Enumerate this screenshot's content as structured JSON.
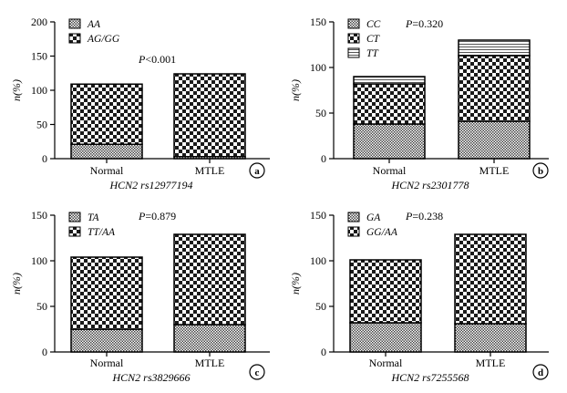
{
  "chart_data": [
    {
      "type": "bar",
      "stacked": true,
      "panel": "a",
      "categories": [
        "Normal",
        "MTLE"
      ],
      "series": [
        {
          "name": "AA",
          "values": [
            21,
            3
          ],
          "pattern": "dense"
        },
        {
          "name": "AG/GG",
          "values": [
            88,
            121
          ],
          "pattern": "check"
        }
      ],
      "xlabel": "HCN2 rs12977194",
      "ylabel": "n(%)",
      "ylim": [
        0,
        200
      ],
      "yticks": [
        0,
        50,
        100,
        150,
        200
      ],
      "p_prefix": "P",
      "p_value": "<0.001",
      "legend": "top-left"
    },
    {
      "type": "bar",
      "stacked": true,
      "panel": "b",
      "categories": [
        "Normal",
        "MTLE"
      ],
      "series": [
        {
          "name": "CC",
          "values": [
            38,
            41
          ],
          "pattern": "dense"
        },
        {
          "name": "CT",
          "values": [
            44,
            72
          ],
          "pattern": "check"
        },
        {
          "name": "TT",
          "values": [
            8,
            17
          ],
          "pattern": "hlines"
        }
      ],
      "xlabel": "HCN2 rs2301778",
      "ylabel": "n(%)",
      "ylim": [
        0,
        150
      ],
      "yticks": [
        0,
        50,
        100,
        150
      ],
      "p_prefix": "P",
      "p_value": "=0.320",
      "legend": "top-left"
    },
    {
      "type": "bar",
      "stacked": true,
      "panel": "c",
      "categories": [
        "Normal",
        "MTLE"
      ],
      "series": [
        {
          "name": "TA",
          "values": [
            25,
            30
          ],
          "pattern": "dense"
        },
        {
          "name": "TT/AA",
          "values": [
            79,
            99
          ],
          "pattern": "check"
        }
      ],
      "xlabel": "HCN2 rs3829666",
      "ylabel": "n(%)",
      "ylim": [
        0,
        150
      ],
      "yticks": [
        0,
        50,
        100,
        150
      ],
      "p_prefix": "P",
      "p_value": "=0.879",
      "legend": "top-left"
    },
    {
      "type": "bar",
      "stacked": true,
      "panel": "d",
      "categories": [
        "Normal",
        "MTLE"
      ],
      "series": [
        {
          "name": "GA",
          "values": [
            32,
            31
          ],
          "pattern": "dense"
        },
        {
          "name": "GG/AA",
          "values": [
            69,
            98
          ],
          "pattern": "check"
        }
      ],
      "xlabel": "HCN2 rs7255568",
      "ylabel": "n(%)",
      "ylim": [
        0,
        150
      ],
      "yticks": [
        0,
        50,
        100,
        150
      ],
      "p_prefix": "P",
      "p_value": "=0.238",
      "legend": "top-left"
    }
  ]
}
